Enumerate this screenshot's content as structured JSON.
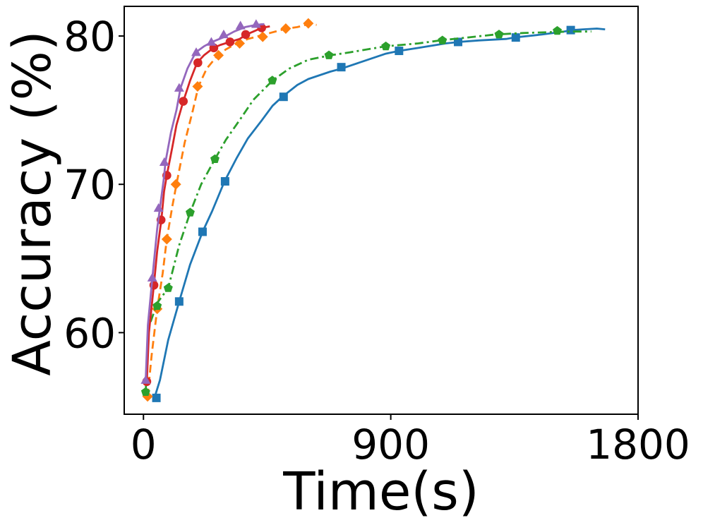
{
  "chart_data": {
    "type": "line",
    "title": "",
    "xlabel": "Time(s)",
    "ylabel": "Accuracy (%)",
    "xlim": [
      -70,
      1800
    ],
    "ylim": [
      54.5,
      82.0
    ],
    "xticks": [
      0,
      900,
      1800
    ],
    "yticks": [
      60,
      70,
      80
    ],
    "grid": false,
    "legend": "none",
    "series": [
      {
        "color": "#1f77b4",
        "dash": "solid",
        "marker": "square",
        "line": [
          [
            40,
            55.6
          ],
          [
            60,
            56.8
          ],
          [
            90,
            59.5
          ],
          [
            130,
            62.1
          ],
          [
            170,
            64.6
          ],
          [
            215,
            66.8
          ],
          [
            250,
            68.2
          ],
          [
            295,
            70.2
          ],
          [
            340,
            71.8
          ],
          [
            380,
            73.1
          ],
          [
            430,
            74.3
          ],
          [
            470,
            75.3
          ],
          [
            505,
            75.9
          ],
          [
            560,
            76.7
          ],
          [
            600,
            77.1
          ],
          [
            680,
            77.6
          ],
          [
            720,
            77.8
          ],
          [
            800,
            78.3
          ],
          [
            880,
            78.8
          ],
          [
            930,
            79.0
          ],
          [
            1000,
            79.2
          ],
          [
            1100,
            79.5
          ],
          [
            1150,
            79.6
          ],
          [
            1220,
            79.7
          ],
          [
            1320,
            79.8
          ],
          [
            1350,
            79.9
          ],
          [
            1450,
            80.1
          ],
          [
            1530,
            80.3
          ],
          [
            1560,
            80.4
          ],
          [
            1600,
            80.45
          ],
          [
            1650,
            80.5
          ],
          [
            1680,
            80.45
          ]
        ],
        "markers": [
          [
            47,
            55.6
          ],
          [
            130,
            62.1
          ],
          [
            215,
            66.8
          ],
          [
            297,
            70.2
          ],
          [
            510,
            75.9
          ],
          [
            720,
            77.9
          ],
          [
            930,
            79.0
          ],
          [
            1145,
            79.6
          ],
          [
            1355,
            79.9
          ],
          [
            1555,
            80.4
          ]
        ]
      },
      {
        "color": "#ff7f0e",
        "dash": "dashed",
        "marker": "diamond",
        "line": [
          [
            15,
            55.7
          ],
          [
            30,
            58.5
          ],
          [
            50,
            61.6
          ],
          [
            70,
            64.0
          ],
          [
            85,
            66.3
          ],
          [
            105,
            68.5
          ],
          [
            120,
            70.0
          ],
          [
            150,
            72.8
          ],
          [
            180,
            75.0
          ],
          [
            200,
            76.6
          ],
          [
            230,
            77.8
          ],
          [
            270,
            78.7
          ],
          [
            300,
            79.1
          ],
          [
            340,
            79.5
          ],
          [
            380,
            79.8
          ],
          [
            420,
            80.0
          ],
          [
            460,
            80.2
          ],
          [
            520,
            80.5
          ],
          [
            560,
            80.6
          ],
          [
            600,
            80.8
          ],
          [
            630,
            80.75
          ]
        ],
        "markers": [
          [
            15,
            55.7
          ],
          [
            50,
            61.6
          ],
          [
            85,
            66.3
          ],
          [
            118,
            70.0
          ],
          [
            197,
            76.6
          ],
          [
            273,
            78.7
          ],
          [
            350,
            79.5
          ],
          [
            434,
            79.95
          ],
          [
            518,
            80.5
          ],
          [
            600,
            80.85
          ]
        ]
      },
      {
        "color": "#2ca02c",
        "dash": "dashdot",
        "marker": "pentagon",
        "line": [
          [
            8,
            56.0
          ],
          [
            20,
            60.4
          ],
          [
            50,
            62.0
          ],
          [
            90,
            63.0
          ],
          [
            130,
            65.9
          ],
          [
            170,
            68.1
          ],
          [
            210,
            70.0
          ],
          [
            260,
            71.7
          ],
          [
            300,
            73.0
          ],
          [
            360,
            74.6
          ],
          [
            400,
            75.7
          ],
          [
            470,
            77.0
          ],
          [
            530,
            77.8
          ],
          [
            600,
            78.4
          ],
          [
            680,
            78.7
          ],
          [
            750,
            78.9
          ],
          [
            880,
            79.3
          ],
          [
            1000,
            79.5
          ],
          [
            1080,
            79.7
          ],
          [
            1180,
            79.9
          ],
          [
            1280,
            80.1
          ],
          [
            1380,
            80.2
          ],
          [
            1550,
            80.3
          ],
          [
            1630,
            80.3
          ]
        ],
        "markers": [
          [
            8,
            56.0
          ],
          [
            50,
            61.8
          ],
          [
            90,
            63.0
          ],
          [
            170,
            68.1
          ],
          [
            260,
            71.7
          ],
          [
            469,
            77.0
          ],
          [
            675,
            78.7
          ],
          [
            882,
            79.3
          ],
          [
            1088,
            79.7
          ],
          [
            1294,
            80.1
          ],
          [
            1506,
            80.35
          ]
        ]
      },
      {
        "color": "#d62728",
        "dash": "solid",
        "marker": "circle",
        "line": [
          [
            12,
            56.6
          ],
          [
            20,
            60.0
          ],
          [
            38,
            63.2
          ],
          [
            50,
            65.5
          ],
          [
            65,
            67.6
          ],
          [
            75,
            69.5
          ],
          [
            85,
            70.6
          ],
          [
            105,
            72.5
          ],
          [
            120,
            74.0
          ],
          [
            145,
            75.6
          ],
          [
            170,
            77.0
          ],
          [
            195,
            78.2
          ],
          [
            220,
            78.7
          ],
          [
            255,
            79.2
          ],
          [
            280,
            79.4
          ],
          [
            315,
            79.6
          ],
          [
            350,
            79.8
          ],
          [
            375,
            80.1
          ],
          [
            400,
            80.3
          ],
          [
            430,
            80.55
          ],
          [
            460,
            80.65
          ]
        ],
        "markers": [
          [
            12,
            56.7
          ],
          [
            38,
            63.2
          ],
          [
            64,
            67.6
          ],
          [
            85,
            70.6
          ],
          [
            145,
            75.6
          ],
          [
            198,
            78.2
          ],
          [
            256,
            79.2
          ],
          [
            315,
            79.6
          ],
          [
            372,
            80.1
          ],
          [
            430,
            80.55
          ]
        ]
      },
      {
        "color": "#9467bd",
        "dash": "solid",
        "marker": "triangle",
        "line": [
          [
            8,
            56.8
          ],
          [
            16,
            60.5
          ],
          [
            32,
            63.6
          ],
          [
            50,
            67.0
          ],
          [
            60,
            68.4
          ],
          [
            75,
            70.5
          ],
          [
            80,
            71.5
          ],
          [
            100,
            73.5
          ],
          [
            120,
            75.0
          ],
          [
            135,
            76.5
          ],
          [
            160,
            77.8
          ],
          [
            190,
            78.9
          ],
          [
            220,
            79.3
          ],
          [
            250,
            79.6
          ],
          [
            290,
            79.9
          ],
          [
            330,
            80.3
          ],
          [
            370,
            80.6
          ],
          [
            410,
            80.75
          ],
          [
            440,
            80.8
          ]
        ],
        "markers": [
          [
            8,
            56.8
          ],
          [
            32,
            63.7
          ],
          [
            55,
            68.4
          ],
          [
            76,
            71.5
          ],
          [
            130,
            76.5
          ],
          [
            192,
            78.9
          ],
          [
            247,
            79.6
          ],
          [
            292,
            80.1
          ],
          [
            353,
            80.7
          ],
          [
            410,
            80.8
          ]
        ]
      }
    ]
  }
}
